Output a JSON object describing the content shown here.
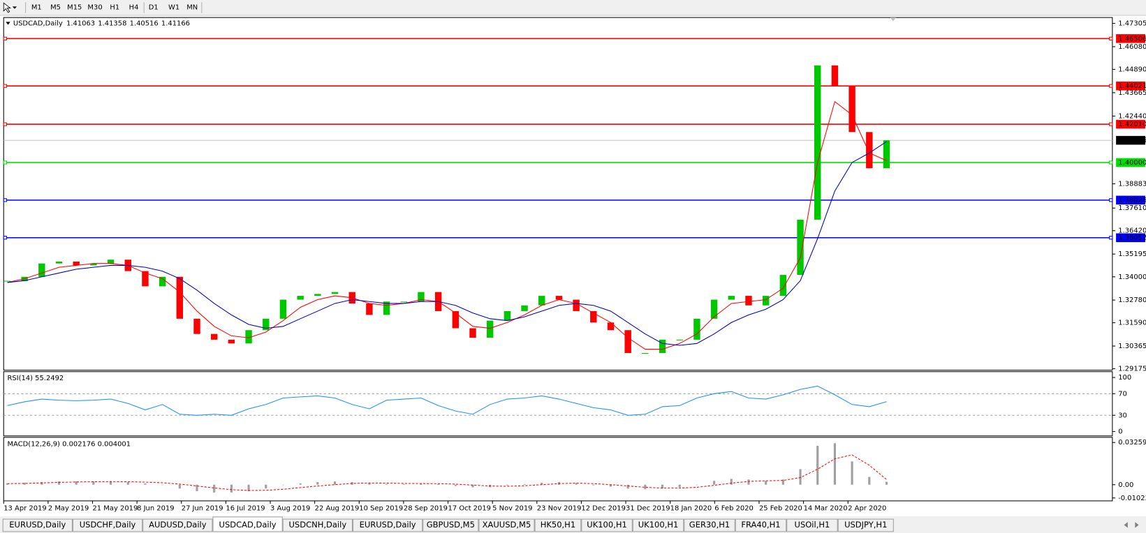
{
  "toolbar": {
    "timeframes": [
      "M1",
      "M5",
      "M15",
      "M30",
      "H1",
      "H4",
      "D1",
      "W1",
      "MN"
    ]
  },
  "chart_data": {
    "type": "candlestick",
    "symbol": "USDCAD,Daily",
    "ohlc_labels": [
      "1.41063",
      "1.41358",
      "1.40516",
      "1.41166"
    ],
    "close": [
      1.3377,
      1.34,
      1.347,
      1.348,
      1.346,
      1.347,
      1.349,
      1.343,
      1.335,
      1.34,
      1.318,
      1.31,
      1.307,
      1.305,
      1.312,
      1.318,
      1.328,
      1.33,
      1.331,
      1.332,
      1.326,
      1.32,
      1.327,
      1.327,
      1.332,
      1.322,
      1.313,
      1.308,
      1.317,
      1.322,
      1.325,
      1.33,
      1.328,
      1.322,
      1.316,
      1.312,
      1.3,
      1.3,
      1.307,
      1.307,
      1.318,
      1.328,
      1.33,
      1.325,
      1.33,
      1.341,
      1.37,
      1.451,
      1.44,
      1.416,
      1.397,
      1.41166
    ],
    "up_color": "#00c800",
    "down_color": "#ff0000",
    "moving_averages": [
      {
        "color": "#ff0000",
        "values": [
          1.337,
          1.339,
          1.342,
          1.345,
          1.346,
          1.347,
          1.347,
          1.346,
          1.342,
          1.339,
          1.332,
          1.322,
          1.314,
          1.309,
          1.308,
          1.311,
          1.317,
          1.324,
          1.328,
          1.33,
          1.329,
          1.326,
          1.325,
          1.326,
          1.328,
          1.327,
          1.321,
          1.314,
          1.313,
          1.316,
          1.32,
          1.325,
          1.328,
          1.326,
          1.321,
          1.316,
          1.308,
          1.302,
          1.302,
          1.305,
          1.31,
          1.319,
          1.326,
          1.327,
          1.328,
          1.334,
          1.35,
          1.4,
          1.432,
          1.425,
          1.405,
          1.401
        ]
      },
      {
        "color": "#0000c8",
        "values": [
          1.337,
          1.338,
          1.34,
          1.342,
          1.344,
          1.345,
          1.346,
          1.346,
          1.345,
          1.343,
          1.339,
          1.333,
          1.326,
          1.32,
          1.315,
          1.313,
          1.314,
          1.318,
          1.322,
          1.326,
          1.328,
          1.327,
          1.326,
          1.326,
          1.327,
          1.327,
          1.325,
          1.321,
          1.318,
          1.317,
          1.319,
          1.322,
          1.325,
          1.326,
          1.325,
          1.322,
          1.316,
          1.31,
          1.305,
          1.304,
          1.305,
          1.31,
          1.316,
          1.32,
          1.323,
          1.328,
          1.338,
          1.36,
          1.385,
          1.4,
          1.405,
          1.411
        ]
      }
    ],
    "ylim": [
      1.29175,
      1.47305
    ],
    "yticks": [
      1.29175,
      1.30365,
      {
        "value": 1.3159,
        "label": "1.31590"
      },
      {
        "value": 1.3278,
        "label": "1.32780"
      },
      {
        "value": 1.34,
        "label": "1.34000"
      },
      1.35195,
      {
        "value": 1.3642,
        "label": "1.36420"
      },
      {
        "value": 1.3761,
        "label": "1.37610"
      },
      1.38883,
      {
        "value": 1.4244,
        "label": "1.42440"
      },
      1.43665,
      {
        "value": 1.4489,
        "label": "1.44890"
      },
      {
        "value": 1.4608,
        "label": "1.46080"
      },
      1.47305
    ],
    "levels": [
      {
        "value": 1.46506,
        "color": "#ff0000"
      },
      {
        "value": 1.44021,
        "color": "#ff0000"
      },
      {
        "value": 1.4201,
        "label": "1.42010",
        "color": "#ff0000"
      },
      {
        "value": 1.4,
        "label": "1.40000",
        "color": "#00e000"
      },
      {
        "value": 1.38026,
        "color": "#0000ff"
      },
      {
        "value": 1.36052,
        "color": "#0000ff"
      }
    ],
    "current_price": {
      "value": 1.41166,
      "color": "#000000"
    },
    "x_labels": [
      "13 Apr 2019",
      "2 May 2019",
      "21 May 2019",
      "8 Jun 2019",
      "27 Jun 2019",
      "16 Jul 2019",
      "3 Aug 2019",
      "22 Aug 2019",
      "10 Sep 2019",
      "28 Sep 2019",
      "17 Oct 2019",
      "5 Nov 2019",
      "23 Nov 2019",
      "12 Dec 2019",
      "31 Dec 2019",
      "18 Jan 2020",
      "6 Feb 2020",
      "25 Feb 2020",
      "14 Mar 2020",
      "2 Apr 2020"
    ],
    "rsi": {
      "title": "RSI(14) 55.2492",
      "color": "#1e90ff",
      "ylim": [
        0,
        100
      ],
      "yticks": [
        0,
        30,
        70,
        100
      ],
      "levels": [
        30,
        70
      ],
      "values": [
        48,
        55,
        60,
        58,
        57,
        58,
        60,
        52,
        40,
        50,
        32,
        30,
        32,
        30,
        42,
        50,
        62,
        64,
        66,
        62,
        50,
        42,
        58,
        60,
        62,
        48,
        38,
        32,
        50,
        60,
        62,
        66,
        60,
        52,
        44,
        40,
        30,
        32,
        46,
        48,
        62,
        70,
        74,
        62,
        60,
        68,
        78,
        84,
        68,
        50,
        46,
        55.2492
      ]
    },
    "macd": {
      "title": "MACD(12,26,9) 0.002176 0.004001",
      "histogram_color": "#a0a0a0",
      "signal_color": "#ff0000",
      "ylim": [
        -0.010227,
        0.032595
      ],
      "yticks": [
        -0.010227,
        {
          "value": 0,
          "label": "0.00"
        },
        0.032595
      ],
      "histogram": [
        0.001,
        0.0015,
        0.002,
        0.0025,
        0.0025,
        0.0025,
        0.0025,
        0.002,
        0.001,
        0.0,
        -0.003,
        -0.005,
        -0.006,
        -0.006,
        -0.005,
        -0.003,
        0.0,
        0.001,
        0.002,
        0.0025,
        0.002,
        0.001,
        0.0005,
        0.0005,
        0.001,
        0.0005,
        -0.001,
        -0.002,
        -0.002,
        -0.0005,
        0.0005,
        0.0015,
        0.002,
        0.001,
        -0.0005,
        -0.0015,
        -0.003,
        -0.0035,
        -0.003,
        -0.002,
        0.0,
        0.003,
        0.0045,
        0.004,
        0.003,
        0.004,
        0.012,
        0.03,
        0.032,
        0.018,
        0.006,
        0.002176
      ],
      "signal": [
        0.0008,
        0.001,
        0.0014,
        0.0018,
        0.0021,
        0.0023,
        0.0024,
        0.0023,
        0.002,
        0.0015,
        0.0005,
        -0.001,
        -0.0025,
        -0.0038,
        -0.0045,
        -0.0043,
        -0.0035,
        -0.0022,
        -0.001,
        0.0,
        0.001,
        0.0013,
        0.0012,
        0.001,
        0.0009,
        0.0008,
        0.0004,
        -0.0003,
        -0.001,
        -0.0012,
        -0.0008,
        0.0,
        0.0008,
        0.0012,
        0.0008,
        0.0,
        -0.001,
        -0.002,
        -0.0026,
        -0.0026,
        -0.002,
        -0.0005,
        0.0012,
        0.0025,
        0.003,
        0.0033,
        0.0055,
        0.012,
        0.02,
        0.023,
        0.015,
        0.004001
      ]
    }
  },
  "tabs": {
    "items": [
      "EURUSD,Daily",
      "USDCHF,Daily",
      "AUDUSD,Daily",
      "USDCAD,Daily",
      "USDCNH,Daily",
      "EURUSD,Daily",
      "GBPUSD,M5",
      "XAUUSD,M5",
      "HK50,H1",
      "UK100,H1",
      "UK100,H1",
      "GER30,H1",
      "FRA40,H1",
      "USOil,H1",
      "USDJPY,H1"
    ],
    "active": 3
  }
}
